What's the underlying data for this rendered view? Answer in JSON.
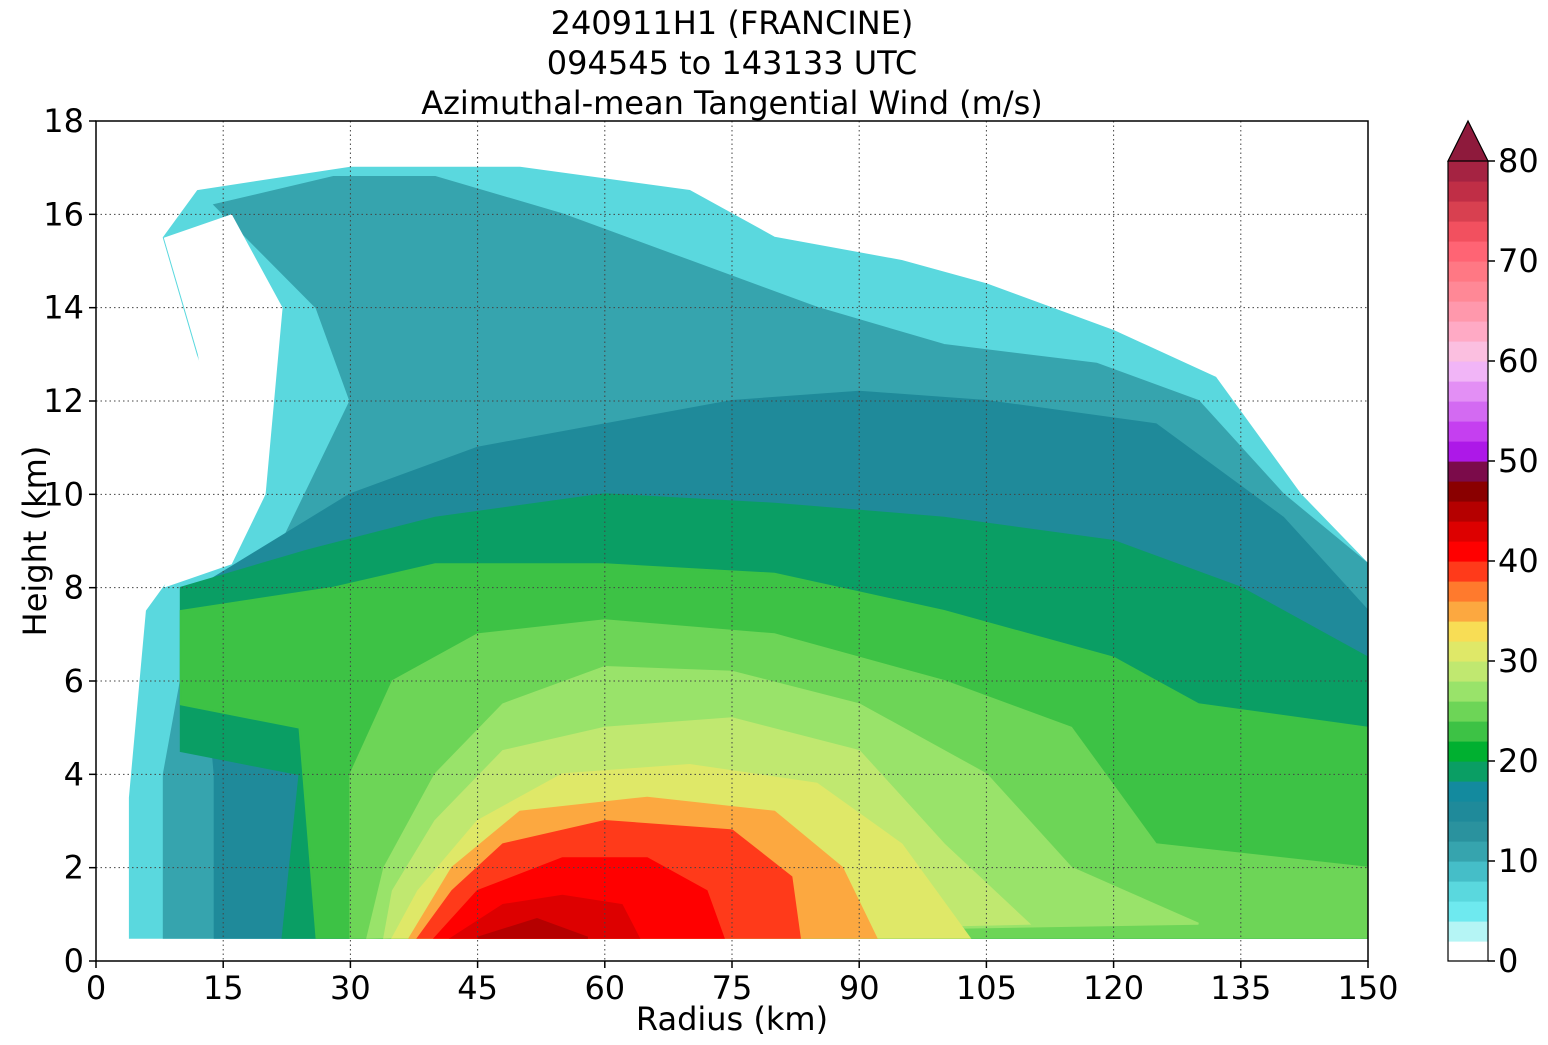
{
  "chart_data": {
    "type": "heatmap",
    "subtype": "filled-contour",
    "title_lines": [
      "240911H1 (FRANCINE)",
      "094545 to 143133 UTC",
      "Azimuthal-mean Tangential Wind (m/s)"
    ],
    "xlabel": "Radius (km)",
    "ylabel": "Height (km)",
    "xlim": [
      0,
      150
    ],
    "ylim": [
      0,
      18
    ],
    "x_ticks": [
      0,
      15,
      30,
      45,
      60,
      75,
      90,
      105,
      120,
      135,
      150
    ],
    "y_ticks": [
      0,
      2,
      4,
      6,
      8,
      10,
      12,
      14,
      16,
      18
    ],
    "grid": true,
    "grid_style": "dotted",
    "colorbar": {
      "ticks": [
        0,
        10,
        20,
        30,
        40,
        50,
        60,
        70,
        80
      ],
      "range": [
        0,
        80
      ],
      "extend": "max",
      "levels_step": 2,
      "colors": [
        "#ffffff",
        "#b5f5f5",
        "#6ee9ef",
        "#5ad8de",
        "#45bec8",
        "#36a4ae",
        "#2a929e",
        "#1f8a9a",
        "#138a9e",
        "#0a9e64",
        "#00b030",
        "#3dc245",
        "#6dd557",
        "#99e36a",
        "#c0e870",
        "#dfe868",
        "#f8dd55",
        "#fca840",
        "#ff7a2d",
        "#ff3a1a",
        "#ff0000",
        "#dd0000",
        "#b50000",
        "#8a0000",
        "#7b0b4a",
        "#ad18e8",
        "#c53ff0",
        "#d36af2",
        "#e38ff5",
        "#f1b5f7",
        "#fbbfe0",
        "#ffaac5",
        "#ff98ac",
        "#ff8896",
        "#ff7884",
        "#ff6474",
        "#f2505f",
        "#d84050",
        "#c02e46",
        "#a52342",
        "#8e1a3c"
      ]
    },
    "no_data_regions": "outside radar coverage (white)",
    "description_of_field": "Maximum tangential wind (>40 m/s) near 45-60 km radius below 1 km height; winds decrease upward and outward; weak winds (<5 m/s) near center aloft and upper levels."
  }
}
